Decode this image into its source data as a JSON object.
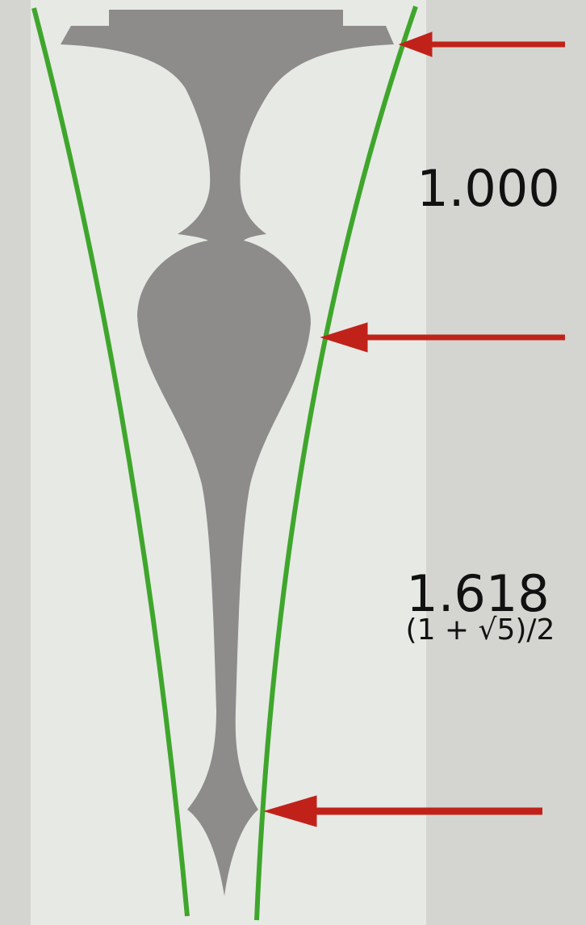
{
  "labels": {
    "upper_ratio": "1.000",
    "lower_ratio": "1.618",
    "formula": "(1 + √5)/2"
  }
}
